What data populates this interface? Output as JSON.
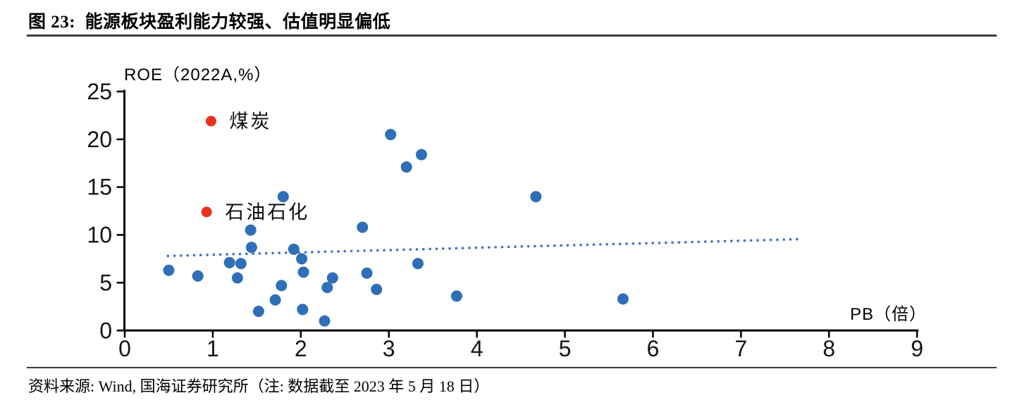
{
  "header": {
    "title": "图 23:  能源板块盈利能力较强、估值明显偏低"
  },
  "footer": {
    "source": "资料来源: Wind, 国海证券研究所（注: 数据截至 2023 年 5 月 18 日）"
  },
  "chart_data": {
    "type": "scatter",
    "title": "图 23:  能源板块盈利能力较强、估值明显偏低",
    "xlabel": "PB（倍）",
    "ylabel": "ROE（2022A,%）",
    "xlim": [
      0,
      9
    ],
    "ylim": [
      0,
      25
    ],
    "xticks": [
      0,
      1,
      2,
      3,
      4,
      5,
      6,
      7,
      8,
      9
    ],
    "yticks": [
      0,
      5,
      10,
      15,
      20,
      25
    ],
    "grid": false,
    "legend": false,
    "accent_colors": {
      "highlight_red": "#e8321f",
      "point_blue": "#2e6fb7",
      "trendline_blue": "#4472c4"
    },
    "series": [
      {
        "id": "other-industries",
        "color": "#2e6fb7",
        "marker_radius": 8,
        "points": [
          [
            0.5,
            6.3
          ],
          [
            0.83,
            5.7
          ],
          [
            1.19,
            7.1
          ],
          [
            1.28,
            5.5
          ],
          [
            1.32,
            7.0
          ],
          [
            1.43,
            10.5
          ],
          [
            1.44,
            8.7
          ],
          [
            1.52,
            2.0
          ],
          [
            1.71,
            3.2
          ],
          [
            1.78,
            4.7
          ],
          [
            1.8,
            14.0
          ],
          [
            1.92,
            8.5
          ],
          [
            2.01,
            7.5
          ],
          [
            2.02,
            2.2
          ],
          [
            2.03,
            6.1
          ],
          [
            2.27,
            1.0
          ],
          [
            2.3,
            4.5
          ],
          [
            2.36,
            5.5
          ],
          [
            2.7,
            10.8
          ],
          [
            2.75,
            6.0
          ],
          [
            2.86,
            4.3
          ],
          [
            3.02,
            20.5
          ],
          [
            3.2,
            17.1
          ],
          [
            3.33,
            7.0
          ],
          [
            3.37,
            18.4
          ],
          [
            3.77,
            3.6
          ],
          [
            4.67,
            14.0
          ],
          [
            5.66,
            3.3
          ]
        ]
      },
      {
        "id": "energy-highlight",
        "color": "#e8321f",
        "marker_radius": 7.5,
        "points": [
          {
            "x": 0.98,
            "y": 21.9,
            "label": "煤炭"
          },
          {
            "x": 0.93,
            "y": 12.4,
            "label": "石油石化"
          }
        ]
      }
    ],
    "trendline": {
      "style": "dotted",
      "color": "#4472c4",
      "x_start": 0.49,
      "y_start": 7.8,
      "x_end": 7.65,
      "y_end": 9.55
    }
  }
}
